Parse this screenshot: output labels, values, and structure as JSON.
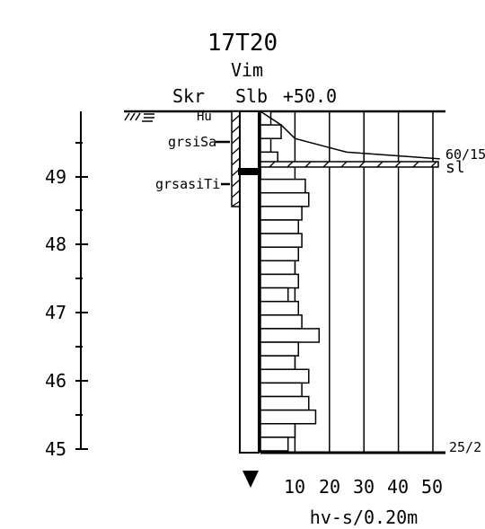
{
  "title": "17T20",
  "method": "Vim",
  "column_headers": {
    "skr": "Skr",
    "slb": "Slb",
    "surface_level": "+50.0"
  },
  "elevation_labels": [
    "49",
    "48",
    "47",
    "46",
    "45"
  ],
  "soil_labels": [
    {
      "text": "Hu"
    },
    {
      "text": "grsiSa"
    },
    {
      "text": "grsasiTi"
    }
  ],
  "layer_marker": "sl",
  "side_values": {
    "refusal_upper": "60/15",
    "refusal_lower": "25/2"
  },
  "x_ticks": [
    "10",
    "20",
    "30",
    "40",
    "50"
  ],
  "x_axis_label": "hv-s/0.20m",
  "chart_data": {
    "type": "bar",
    "orientation": "horizontal",
    "title": "17T20",
    "x_label": "hv-s/0.20m",
    "x_range": [
      0,
      50
    ],
    "elevation_range": [
      45.0,
      50.0
    ],
    "interval_m": 0.2,
    "top_curve": [
      {
        "elev": 50.0,
        "hv": 0
      },
      {
        "elev": 49.8,
        "hv": 6
      },
      {
        "elev": 49.6,
        "hv": 10
      },
      {
        "elev": 49.4,
        "hv": 25
      },
      {
        "elev": 49.3,
        "hv": 52
      }
    ],
    "top_steps": [
      {
        "elev": 50.0,
        "hv": 3
      },
      {
        "elev": 49.8,
        "hv": 6
      },
      {
        "elev": 49.6,
        "hv": 3
      },
      {
        "elev": 49.4,
        "hv": 5
      }
    ],
    "bars": [
      {
        "elev": 49.0,
        "hv": 13
      },
      {
        "elev": 48.8,
        "hv": 14
      },
      {
        "elev": 48.6,
        "hv": 12
      },
      {
        "elev": 48.4,
        "hv": 11
      },
      {
        "elev": 48.2,
        "hv": 12
      },
      {
        "elev": 48.0,
        "hv": 11
      },
      {
        "elev": 47.8,
        "hv": 10
      },
      {
        "elev": 47.6,
        "hv": 11
      },
      {
        "elev": 47.4,
        "hv": 8
      },
      {
        "elev": 47.2,
        "hv": 11
      },
      {
        "elev": 47.0,
        "hv": 12
      },
      {
        "elev": 46.8,
        "hv": 17
      },
      {
        "elev": 46.6,
        "hv": 11
      },
      {
        "elev": 46.4,
        "hv": 10
      },
      {
        "elev": 46.2,
        "hv": 14
      },
      {
        "elev": 46.0,
        "hv": 12
      },
      {
        "elev": 45.8,
        "hv": 14
      },
      {
        "elev": 45.6,
        "hv": 16
      },
      {
        "elev": 45.4,
        "hv": 10
      },
      {
        "elev": 45.2,
        "hv": 8
      }
    ]
  }
}
